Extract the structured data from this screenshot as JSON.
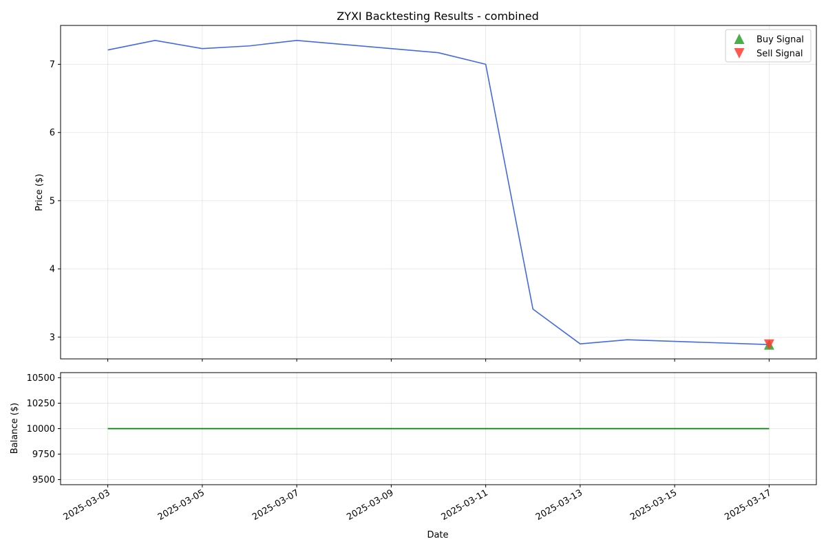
{
  "chart_data": [
    {
      "type": "line",
      "title": "ZYXI Backtesting Results - combined",
      "xlabel": "",
      "ylabel": "Price ($)",
      "ylim": [
        2.68,
        7.57
      ],
      "yticks": [
        3,
        4,
        5,
        6,
        7
      ],
      "grid": true,
      "legend": "top-right",
      "series": [
        {
          "color": "#4169e1",
          "x": [
            "2025-03-03",
            "2025-03-04",
            "2025-03-05",
            "2025-03-06",
            "2025-03-07",
            "2025-03-10",
            "2025-03-11",
            "2025-03-12",
            "2025-03-13",
            "2025-03-14",
            "2025-03-17"
          ],
          "values": [
            7.21,
            7.35,
            7.23,
            7.27,
            7.35,
            7.17,
            7.0,
            3.41,
            2.9,
            2.96,
            2.89
          ]
        },
        {
          "name": "Buy Signal",
          "marker": "triangle-up",
          "color": "#2ca02c",
          "x": [
            "2025-03-17"
          ],
          "values": [
            2.89
          ]
        },
        {
          "name": "Sell Signal",
          "marker": "triangle-down",
          "color": "#ff3b30",
          "x": [
            "2025-03-17"
          ],
          "values": [
            2.89
          ]
        }
      ]
    },
    {
      "type": "line",
      "title": "",
      "xlabel": "Date",
      "ylabel": "Balance ($)",
      "ylim": [
        9450,
        10550
      ],
      "yticks": [
        9500,
        9750,
        10000,
        10250,
        10500
      ],
      "grid": true,
      "series": [
        {
          "color": "#008000",
          "x": [
            "2025-03-03",
            "2025-03-04",
            "2025-03-05",
            "2025-03-06",
            "2025-03-07",
            "2025-03-10",
            "2025-03-11",
            "2025-03-12",
            "2025-03-13",
            "2025-03-14",
            "2025-03-17"
          ],
          "values": [
            10000,
            10000,
            10000,
            10000,
            10000,
            10000,
            10000,
            10000,
            10000,
            10000,
            10000
          ]
        }
      ],
      "xticks": [
        "2025-03-03",
        "2025-03-05",
        "2025-03-07",
        "2025-03-09",
        "2025-03-11",
        "2025-03-13",
        "2025-03-15",
        "2025-03-17"
      ],
      "xlim": [
        "2025-03-02",
        "2025-03-18"
      ]
    }
  ]
}
